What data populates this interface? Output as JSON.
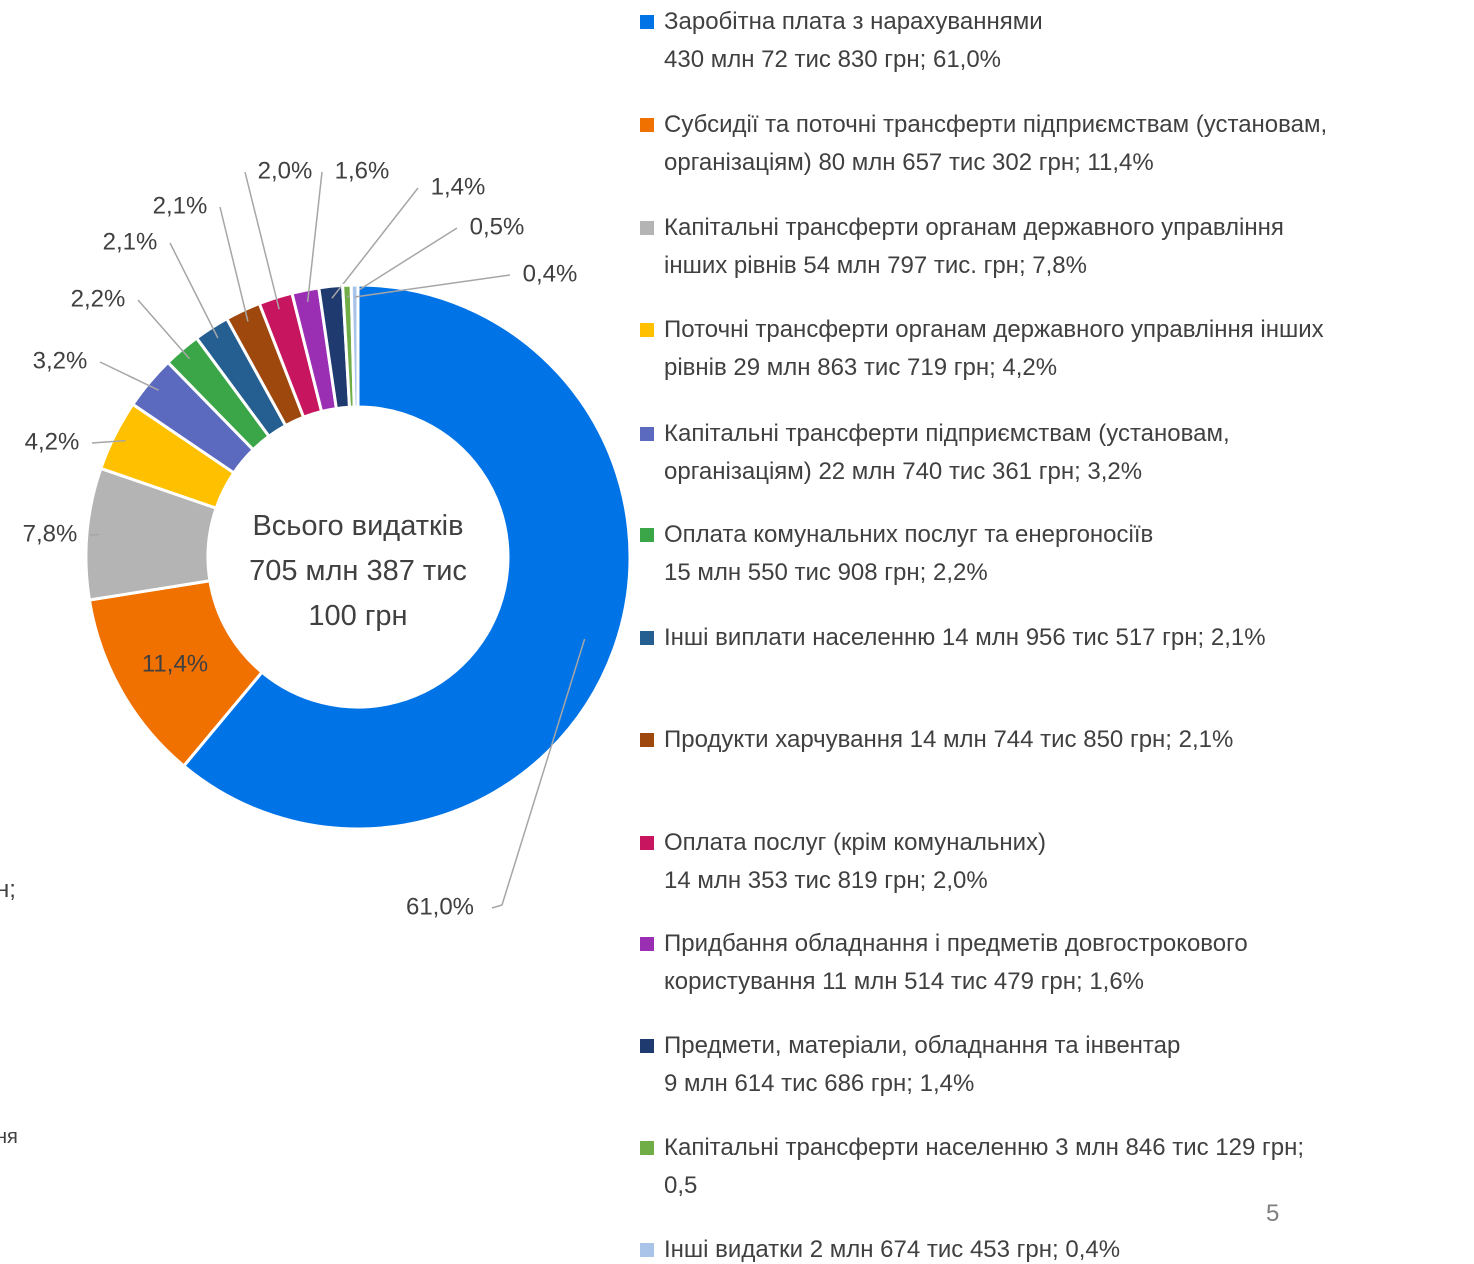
{
  "chart_data": {
    "type": "donut",
    "center_label": "Всього видатків\n705 млн 387 тис\n100 грн",
    "categories": [
      "Заробітна плата з нарахуваннями\n430 млн 72 тис 830 грн; 61,0%",
      "Субсидії та поточні трансферти підприємствам (установам,\nорганізаціям) 80 млн 657 тис 302 грн; 11,4%",
      "Капітальні трансферти органам державного управління\nінших рівнів 54 млн 797 тис. грн; 7,8%",
      "Поточні трансферти органам державного управління інших\nрівнів 29 млн 863 тис 719 грн; 4,2%",
      "Капітальні трансферти підприємствам (установам,\nорганізаціям) 22 млн 740 тис 361 грн; 3,2%",
      "Оплата комунальних послуг та енергоносіїв\n15 млн 550 тис 908 грн; 2,2%",
      "Інші виплати населенню 14 млн 956 тис 517 грн; 2,1%",
      "Продукти харчування 14 млн 744 тис 850 грн; 2,1%",
      "Оплата послуг (крім комунальних)\n14 млн 353 тис 819 грн; 2,0%",
      "Придбання обладнання і предметів довгострокового\nкористування 11 млн 514 тис 479 грн; 1,6%",
      "Предмети, матеріали, обладнання та інвентар\n9 млн 614 тис 686 грн; 1,4%",
      "Капітальні трансферти населенню 3 млн 846 тис 129 грн;\n0,5",
      "Інші видатки 2 млн 674 тис 453 грн; 0,4%"
    ],
    "values": [
      61.0,
      11.4,
      7.8,
      4.2,
      3.2,
      2.2,
      2.1,
      2.1,
      2.0,
      1.6,
      1.4,
      0.5,
      0.4
    ],
    "value_labels": [
      "61,0%",
      "11,4%",
      "7,8%",
      "4,2%",
      "3,2%",
      "2,2%",
      "2,1%",
      "2,1%",
      "2,0%",
      "1,6%",
      "1,4%",
      "0,5%",
      "0,4%"
    ],
    "colors": [
      "#0073e6",
      "#f07000",
      "#b4b4b4",
      "#ffc000",
      "#5b6abf",
      "#3aa648",
      "#255e91",
      "#9e480e",
      "#c8155f",
      "#9a2fb4",
      "#1f3a6e",
      "#70ad47",
      "#a9c4e8"
    ],
    "page_number": "5",
    "fragments": [
      "н;",
      "ня"
    ]
  }
}
